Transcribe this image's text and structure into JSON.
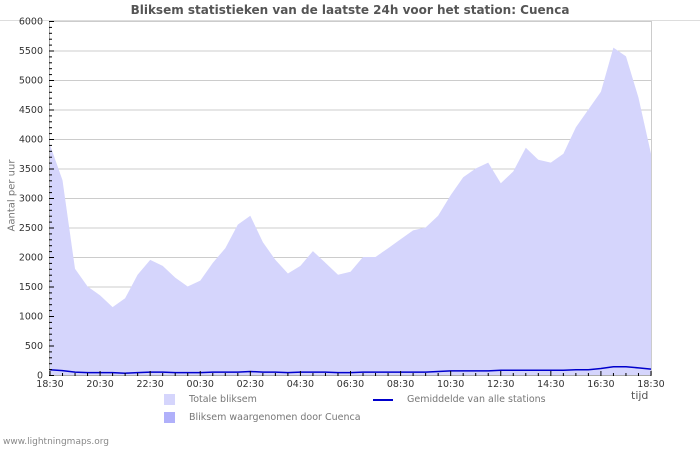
{
  "title": "Bliksem statistieken van de laatste 24h voor het station: Cuenca",
  "footer": "www.lightningmaps.org",
  "y_axis_label": "Aantal per uur",
  "x_axis_unit": "tijd",
  "legend": {
    "total": "Totale bliksem",
    "station": "Bliksem waargenomen door Cuenca",
    "average": "Gemiddelde van alle stations"
  },
  "colors": {
    "total_fill": "#d5d5fc",
    "station_fill": "#b0b0fa",
    "average_line": "#0000cc",
    "grid": "#cccccc",
    "title": "#555555"
  },
  "chart_data": {
    "type": "area",
    "title": "Bliksem statistieken van de laatste 24h voor het station: Cuenca",
    "xlabel": "tijd",
    "ylabel": "Aantal per uur",
    "ylim": [
      0,
      6000
    ],
    "yticks": [
      0,
      500,
      1000,
      1500,
      2000,
      2500,
      3000,
      3500,
      4000,
      4500,
      5000,
      5500,
      6000
    ],
    "xtick_labels": [
      "18:30",
      "20:30",
      "22:30",
      "00:30",
      "02:30",
      "04:30",
      "06:30",
      "08:30",
      "10:30",
      "12:30",
      "14:30",
      "16:30",
      "18:30"
    ],
    "grid": true,
    "legend_position": "bottom",
    "x": [
      "18:30",
      "19:00",
      "19:30",
      "20:00",
      "20:30",
      "21:00",
      "21:30",
      "22:00",
      "22:30",
      "23:00",
      "23:30",
      "00:00",
      "00:30",
      "01:00",
      "01:30",
      "02:00",
      "02:30",
      "03:00",
      "03:30",
      "04:00",
      "04:30",
      "05:00",
      "05:30",
      "06:00",
      "06:30",
      "07:00",
      "07:30",
      "08:00",
      "08:30",
      "09:00",
      "09:30",
      "10:00",
      "10:30",
      "11:00",
      "11:30",
      "12:00",
      "12:30",
      "13:00",
      "13:30",
      "14:00",
      "14:30",
      "15:00",
      "15:30",
      "16:00",
      "16:30",
      "17:00",
      "17:30",
      "18:00",
      "18:30"
    ],
    "series": [
      {
        "name": "Totale bliksem",
        "type": "area",
        "values": [
          3900,
          3300,
          1800,
          1500,
          1350,
          1150,
          1300,
          1700,
          1950,
          1850,
          1650,
          1500,
          1600,
          1900,
          2150,
          2550,
          2700,
          2250,
          1950,
          1720,
          1850,
          2100,
          1900,
          1700,
          1750,
          2000,
          2000,
          2150,
          2300,
          2450,
          2500,
          2700,
          3050,
          3350,
          3500,
          3600,
          3250,
          3450,
          3850,
          3650,
          3600,
          3750,
          4200,
          4500,
          4800,
          5550,
          5400,
          4700,
          3750
        ]
      },
      {
        "name": "Bliksem waargenomen door Cuenca",
        "type": "area",
        "values": [
          0,
          0,
          0,
          0,
          0,
          0,
          0,
          0,
          0,
          0,
          0,
          0,
          0,
          0,
          0,
          0,
          0,
          0,
          0,
          0,
          0,
          0,
          0,
          0,
          0,
          0,
          0,
          0,
          0,
          0,
          0,
          0,
          0,
          0,
          0,
          0,
          0,
          0,
          0,
          0,
          0,
          0,
          0,
          0,
          0,
          0,
          0,
          0,
          0
        ]
      },
      {
        "name": "Gemiddelde van alle stations",
        "type": "line",
        "values": [
          90,
          75,
          50,
          40,
          40,
          40,
          30,
          40,
          50,
          50,
          40,
          40,
          40,
          50,
          50,
          50,
          60,
          50,
          50,
          40,
          50,
          50,
          50,
          40,
          40,
          50,
          50,
          50,
          50,
          50,
          50,
          60,
          70,
          70,
          70,
          70,
          80,
          80,
          80,
          80,
          80,
          80,
          90,
          90,
          110,
          140,
          140,
          120,
          100
        ]
      }
    ]
  }
}
